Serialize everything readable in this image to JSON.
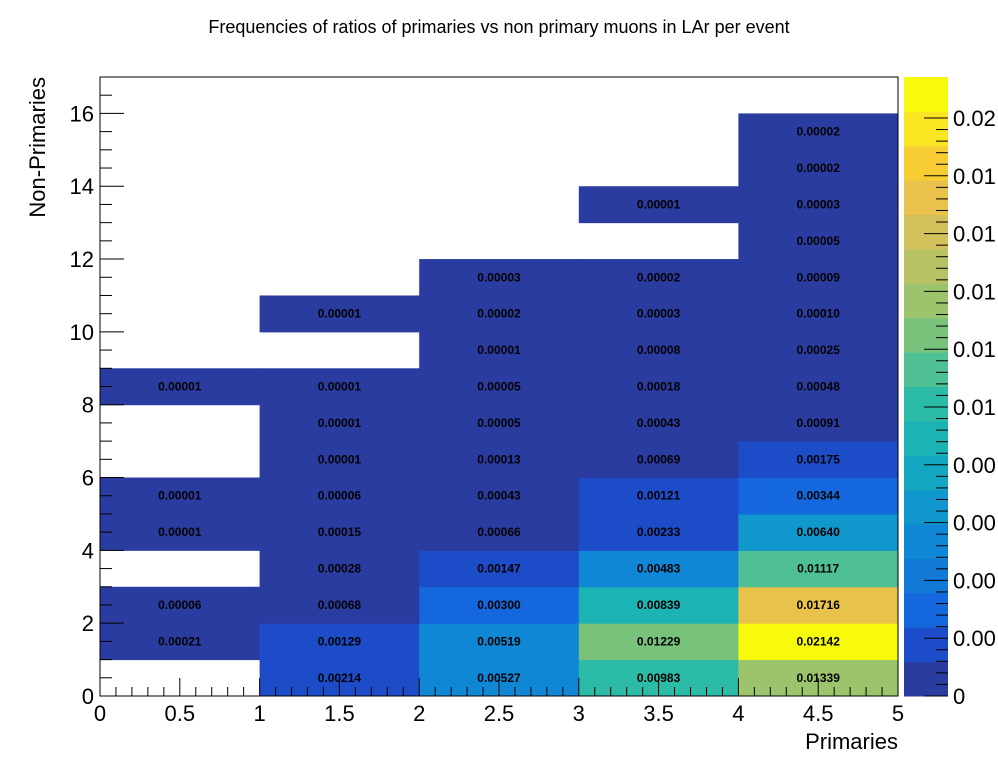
{
  "chart_data": {
    "type": "heatmap",
    "title": "Frequencies of ratios of primaries vs non primary muons in LAr per event",
    "xlabel": "Primaries",
    "ylabel": "Non-Primaries",
    "xlim": [
      0,
      5
    ],
    "ylim": [
      0,
      17
    ],
    "x_ticks": [
      "0",
      "0.5",
      "1",
      "1.5",
      "2",
      "2.5",
      "3",
      "3.5",
      "4",
      "4.5",
      "5"
    ],
    "y_ticks": [
      "0",
      "2",
      "4",
      "6",
      "8",
      "10",
      "12",
      "14",
      "16"
    ],
    "x_bin_width": 1,
    "y_bin_width": 1,
    "z_max": 0.02142,
    "colorbar_ticks": [
      "0",
      "0.00",
      "0.00",
      "0.00",
      "0.00",
      "0.01",
      "0.01",
      "0.01",
      "0.01",
      "0.01",
      "0.02"
    ],
    "cells": [
      {
        "x": 0,
        "y": 1,
        "value": 0.00021,
        "label": "0.00021"
      },
      {
        "x": 0,
        "y": 2,
        "value": 6e-05,
        "label": "0.00006"
      },
      {
        "x": 0,
        "y": 4,
        "value": 1e-05,
        "label": "0.00001"
      },
      {
        "x": 0,
        "y": 5,
        "value": 1e-05,
        "label": "0.00001"
      },
      {
        "x": 0,
        "y": 8,
        "value": 1e-05,
        "label": "0.00001"
      },
      {
        "x": 1,
        "y": 0,
        "value": 0.00214,
        "label": "0.00214"
      },
      {
        "x": 1,
        "y": 1,
        "value": 0.00129,
        "label": "0.00129"
      },
      {
        "x": 1,
        "y": 2,
        "value": 0.00068,
        "label": "0.00068"
      },
      {
        "x": 1,
        "y": 3,
        "value": 0.00028,
        "label": "0.00028"
      },
      {
        "x": 1,
        "y": 4,
        "value": 0.00015,
        "label": "0.00015"
      },
      {
        "x": 1,
        "y": 5,
        "value": 6e-05,
        "label": "0.00006"
      },
      {
        "x": 1,
        "y": 6,
        "value": 1e-05,
        "label": "0.00001"
      },
      {
        "x": 1,
        "y": 7,
        "value": 1e-05,
        "label": "0.00001"
      },
      {
        "x": 1,
        "y": 8,
        "value": 1e-05,
        "label": "0.00001"
      },
      {
        "x": 1,
        "y": 10,
        "value": 1e-05,
        "label": "0.00001"
      },
      {
        "x": 2,
        "y": 0,
        "value": 0.00527,
        "label": "0.00527"
      },
      {
        "x": 2,
        "y": 1,
        "value": 0.00519,
        "label": "0.00519"
      },
      {
        "x": 2,
        "y": 2,
        "value": 0.003,
        "label": "0.00300"
      },
      {
        "x": 2,
        "y": 3,
        "value": 0.00147,
        "label": "0.00147"
      },
      {
        "x": 2,
        "y": 4,
        "value": 0.00066,
        "label": "0.00066"
      },
      {
        "x": 2,
        "y": 5,
        "value": 0.00043,
        "label": "0.00043"
      },
      {
        "x": 2,
        "y": 6,
        "value": 0.00013,
        "label": "0.00013"
      },
      {
        "x": 2,
        "y": 7,
        "value": 5e-05,
        "label": "0.00005"
      },
      {
        "x": 2,
        "y": 8,
        "value": 5e-05,
        "label": "0.00005"
      },
      {
        "x": 2,
        "y": 9,
        "value": 1e-05,
        "label": "0.00001"
      },
      {
        "x": 2,
        "y": 10,
        "value": 2e-05,
        "label": "0.00002"
      },
      {
        "x": 2,
        "y": 11,
        "value": 3e-05,
        "label": "0.00003"
      },
      {
        "x": 3,
        "y": 0,
        "value": 0.00983,
        "label": "0.00983"
      },
      {
        "x": 3,
        "y": 1,
        "value": 0.01229,
        "label": "0.01229"
      },
      {
        "x": 3,
        "y": 2,
        "value": 0.00839,
        "label": "0.00839"
      },
      {
        "x": 3,
        "y": 3,
        "value": 0.00483,
        "label": "0.00483"
      },
      {
        "x": 3,
        "y": 4,
        "value": 0.00233,
        "label": "0.00233"
      },
      {
        "x": 3,
        "y": 5,
        "value": 0.00121,
        "label": "0.00121"
      },
      {
        "x": 3,
        "y": 6,
        "value": 0.00069,
        "label": "0.00069"
      },
      {
        "x": 3,
        "y": 7,
        "value": 0.00043,
        "label": "0.00043"
      },
      {
        "x": 3,
        "y": 8,
        "value": 0.00018,
        "label": "0.00018"
      },
      {
        "x": 3,
        "y": 9,
        "value": 8e-05,
        "label": "0.00008"
      },
      {
        "x": 3,
        "y": 10,
        "value": 3e-05,
        "label": "0.00003"
      },
      {
        "x": 3,
        "y": 11,
        "value": 2e-05,
        "label": "0.00002"
      },
      {
        "x": 3,
        "y": 13,
        "value": 1e-05,
        "label": "0.00001"
      },
      {
        "x": 4,
        "y": 0,
        "value": 0.01339,
        "label": "0.01339"
      },
      {
        "x": 4,
        "y": 1,
        "value": 0.02142,
        "label": "0.02142"
      },
      {
        "x": 4,
        "y": 2,
        "value": 0.01716,
        "label": "0.01716"
      },
      {
        "x": 4,
        "y": 3,
        "value": 0.01117,
        "label": "0.01117"
      },
      {
        "x": 4,
        "y": 4,
        "value": 0.0064,
        "label": "0.00640"
      },
      {
        "x": 4,
        "y": 5,
        "value": 0.00344,
        "label": "0.00344"
      },
      {
        "x": 4,
        "y": 6,
        "value": 0.00175,
        "label": "0.00175"
      },
      {
        "x": 4,
        "y": 7,
        "value": 0.00091,
        "label": "0.00091"
      },
      {
        "x": 4,
        "y": 8,
        "value": 0.00048,
        "label": "0.00048"
      },
      {
        "x": 4,
        "y": 9,
        "value": 0.00025,
        "label": "0.00025"
      },
      {
        "x": 4,
        "y": 10,
        "value": 0.0001,
        "label": "0.00010"
      },
      {
        "x": 4,
        "y": 11,
        "value": 9e-05,
        "label": "0.00009"
      },
      {
        "x": 4,
        "y": 12,
        "value": 5e-05,
        "label": "0.00005"
      },
      {
        "x": 4,
        "y": 13,
        "value": 3e-05,
        "label": "0.00003"
      },
      {
        "x": 4,
        "y": 14,
        "value": 2e-05,
        "label": "0.00002"
      },
      {
        "x": 4,
        "y": 15,
        "value": 2e-05,
        "label": "0.00002"
      }
    ],
    "palette": [
      "#2a3ca0",
      "#1d4cc8",
      "#1467dc",
      "#1279d6",
      "#0f87d4",
      "#1097cc",
      "#14a6c0",
      "#1cb3b4",
      "#2cbba6",
      "#4ec094",
      "#78c27c",
      "#9cc46c",
      "#b8c164",
      "#d2c05a",
      "#e8c24a",
      "#f8cd34",
      "#fbe624",
      "#f8fa0e"
    ]
  }
}
